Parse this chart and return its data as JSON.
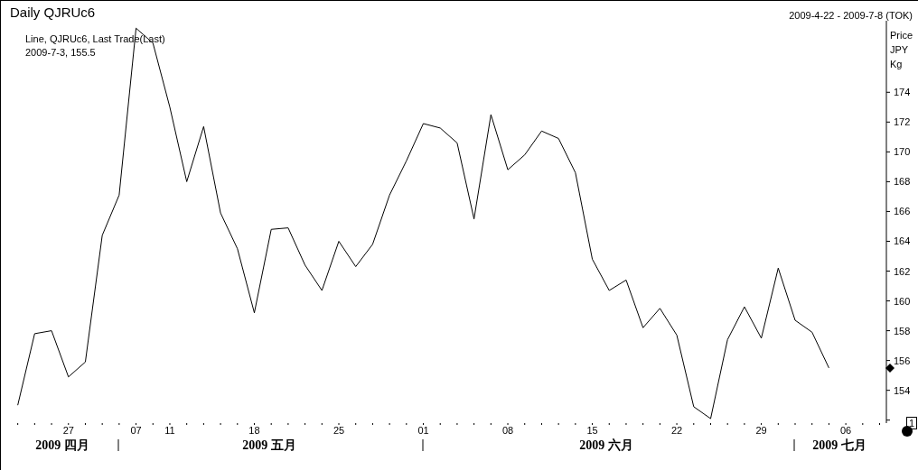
{
  "chart_data": {
    "type": "line",
    "title": "Daily QJRUc6",
    "subtitle": "2009-4-22 - 2009-7-8 (TOK)",
    "ylabel": "Price JPY Kg",
    "annotations": [
      "Line, QJRUc6, Last Trade(Last)",
      "2009-7-3, 155.5",
      "2009 四月",
      "2009 五月",
      "2009 六月",
      "2009 七月",
      "1"
    ],
    "categories": [
      null,
      null,
      null,
      "27",
      null,
      null,
      null,
      "07",
      null,
      "11",
      null,
      null,
      null,
      null,
      "18",
      null,
      null,
      null,
      null,
      "25",
      null,
      null,
      null,
      null,
      "01",
      null,
      null,
      null,
      null,
      "08",
      null,
      null,
      null,
      null,
      "15",
      null,
      null,
      null,
      null,
      "22",
      null,
      null,
      null,
      null,
      "29",
      null,
      null,
      null,
      null,
      "06",
      null,
      null
    ],
    "series": [
      {
        "color": "#000000",
        "values": [
          153.0,
          157.8,
          158.0,
          154.9,
          155.9,
          164.4,
          167.1,
          178.3,
          177.3,
          173.0,
          168.0,
          171.7,
          165.9,
          163.5,
          159.2,
          164.8,
          164.9,
          162.4,
          160.7,
          164.0,
          162.3,
          163.8,
          167.1,
          169.4,
          171.9,
          171.6,
          170.6,
          165.5,
          172.5,
          168.8,
          169.8,
          171.4,
          170.9,
          168.6,
          162.8,
          160.7,
          161.4,
          158.2,
          159.5,
          157.7,
          152.9,
          152.1,
          157.4,
          159.6,
          157.5,
          162.2,
          158.7,
          157.9,
          155.5,
          null,
          null,
          null
        ]
      }
    ],
    "ylim": [
      151.8,
      178.8
    ],
    "yticks": [
      {
        "value": 152,
        "label": null
      },
      154,
      156,
      158,
      160,
      162,
      164,
      166,
      168,
      170,
      172,
      174
    ],
    "grid": false,
    "legend": false,
    "marker": "none",
    "line_style": "solid"
  }
}
